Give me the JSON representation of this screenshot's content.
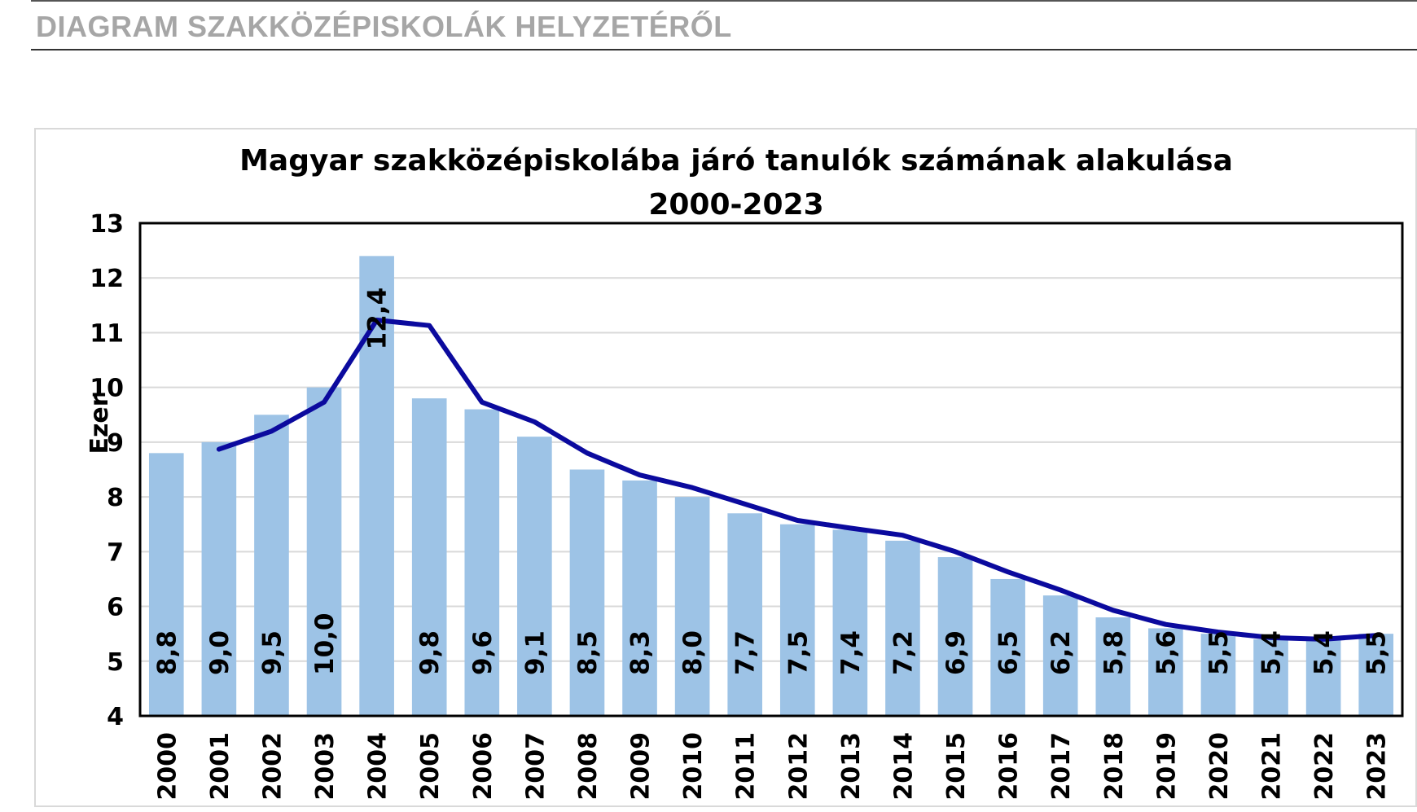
{
  "header": {
    "title": "DIAGRAM SZAKKÖZÉPISKOLÁK HELYZETÉRŐL"
  },
  "chart_data": {
    "type": "bar",
    "title_line1": "Magyar szakközépiskolába járó tanulók számának alakulása",
    "title_line2": "2000-2023",
    "ylabel": "Ezer",
    "xlabel": "",
    "ylim": [
      4,
      13
    ],
    "yticks": [
      4,
      5,
      6,
      7,
      8,
      9,
      10,
      11,
      12,
      13
    ],
    "grid": true,
    "categories": [
      "2000",
      "2001",
      "2002",
      "2003",
      "2004",
      "2005",
      "2006",
      "2007",
      "2008",
      "2009",
      "2010",
      "2011",
      "2012",
      "2013",
      "2014",
      "2015",
      "2016",
      "2017",
      "2018",
      "2019",
      "2020",
      "2021",
      "2022",
      "2023"
    ],
    "values": [
      8.8,
      9.0,
      9.5,
      10.0,
      12.4,
      9.8,
      9.6,
      9.1,
      8.5,
      8.3,
      8.0,
      7.7,
      7.5,
      7.4,
      7.2,
      6.9,
      6.5,
      6.2,
      5.8,
      5.6,
      5.5,
      5.4,
      5.4,
      5.5
    ],
    "value_labels": [
      "8,8",
      "9,0",
      "9,5",
      "10,0",
      "12,4",
      "9,8",
      "9,6",
      "9,1",
      "8,5",
      "8,3",
      "8,0",
      "7,7",
      "7,5",
      "7,4",
      "7,2",
      "6,9",
      "6,5",
      "6,2",
      "5,8",
      "5,6",
      "5,5",
      "5,4",
      "5,4",
      "5,5"
    ],
    "trend_line": {
      "x": [
        "2001",
        "2002",
        "2003",
        "2004",
        "2005",
        "2006",
        "2007",
        "2008",
        "2009",
        "2010",
        "2011",
        "2012",
        "2013",
        "2014",
        "2015",
        "2016",
        "2017",
        "2018",
        "2019",
        "2020",
        "2021",
        "2022",
        "2023"
      ],
      "values": [
        8.87,
        9.2,
        9.73,
        11.23,
        11.13,
        9.73,
        9.37,
        8.8,
        8.4,
        8.17,
        7.87,
        7.57,
        7.43,
        7.3,
        7.0,
        6.63,
        6.3,
        5.93,
        5.67,
        5.53,
        5.43,
        5.4,
        5.47
      ]
    },
    "colors": {
      "bar": "#9dc3e6",
      "line": "#0b0a9e",
      "grid": "#d9d9d9",
      "axis": "#000000"
    }
  }
}
